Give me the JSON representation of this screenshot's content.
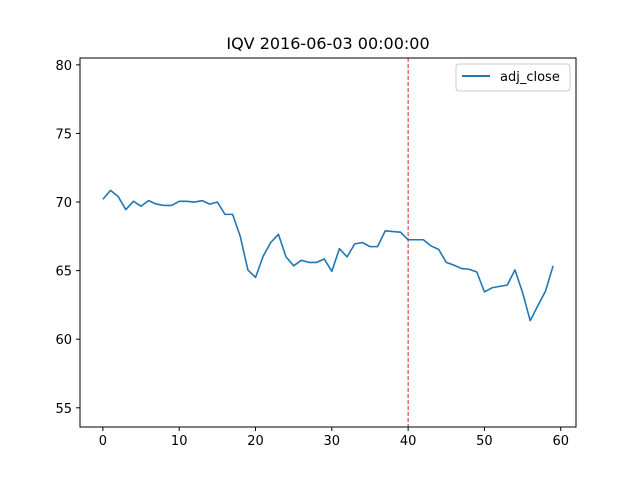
{
  "chart_data": {
    "type": "line",
    "title": "IQV 2016-06-03 00:00:00",
    "xlabel": "",
    "ylabel": "",
    "xlim": [
      -3,
      62
    ],
    "ylim": [
      53.6,
      80.5
    ],
    "x_ticks": [
      0,
      10,
      20,
      30,
      40,
      50,
      60
    ],
    "y_ticks": [
      55,
      60,
      65,
      70,
      75,
      80
    ],
    "grid": false,
    "legend": {
      "position": "top-right",
      "entries": [
        "adj_close"
      ]
    },
    "vline": {
      "x": 40,
      "color": "#d62728",
      "style": "dashed"
    },
    "series": [
      {
        "name": "adj_close",
        "color": "#1f77b4",
        "x": [
          0,
          1,
          2,
          3,
          4,
          5,
          6,
          7,
          8,
          9,
          10,
          11,
          12,
          13,
          14,
          15,
          16,
          17,
          18,
          19,
          20,
          21,
          22,
          23,
          24,
          25,
          26,
          27,
          28,
          29,
          30,
          31,
          32,
          33,
          34,
          35,
          36,
          37,
          38,
          39,
          40,
          41,
          42,
          43,
          44,
          45,
          46,
          47,
          48,
          49,
          50,
          51,
          52,
          53,
          54,
          55,
          56,
          57,
          58,
          59
        ],
        "values": [
          70.2,
          70.85,
          70.4,
          69.45,
          70.05,
          69.7,
          70.1,
          69.85,
          69.75,
          69.75,
          70.05,
          70.05,
          70.0,
          70.1,
          69.85,
          70.0,
          69.1,
          69.1,
          67.5,
          65.05,
          64.5,
          66.05,
          67.05,
          67.65,
          66.0,
          65.35,
          65.75,
          65.6,
          65.6,
          65.85,
          64.95,
          66.6,
          66.0,
          66.95,
          67.05,
          66.75,
          66.75,
          67.9,
          67.85,
          67.8,
          67.25,
          67.25,
          67.25,
          66.8,
          66.55,
          65.6,
          65.4,
          65.15,
          65.1,
          64.9,
          63.45,
          63.75,
          63.85,
          63.95,
          65.05,
          63.4,
          61.35,
          62.45,
          63.5,
          65.35
        ]
      }
    ]
  }
}
